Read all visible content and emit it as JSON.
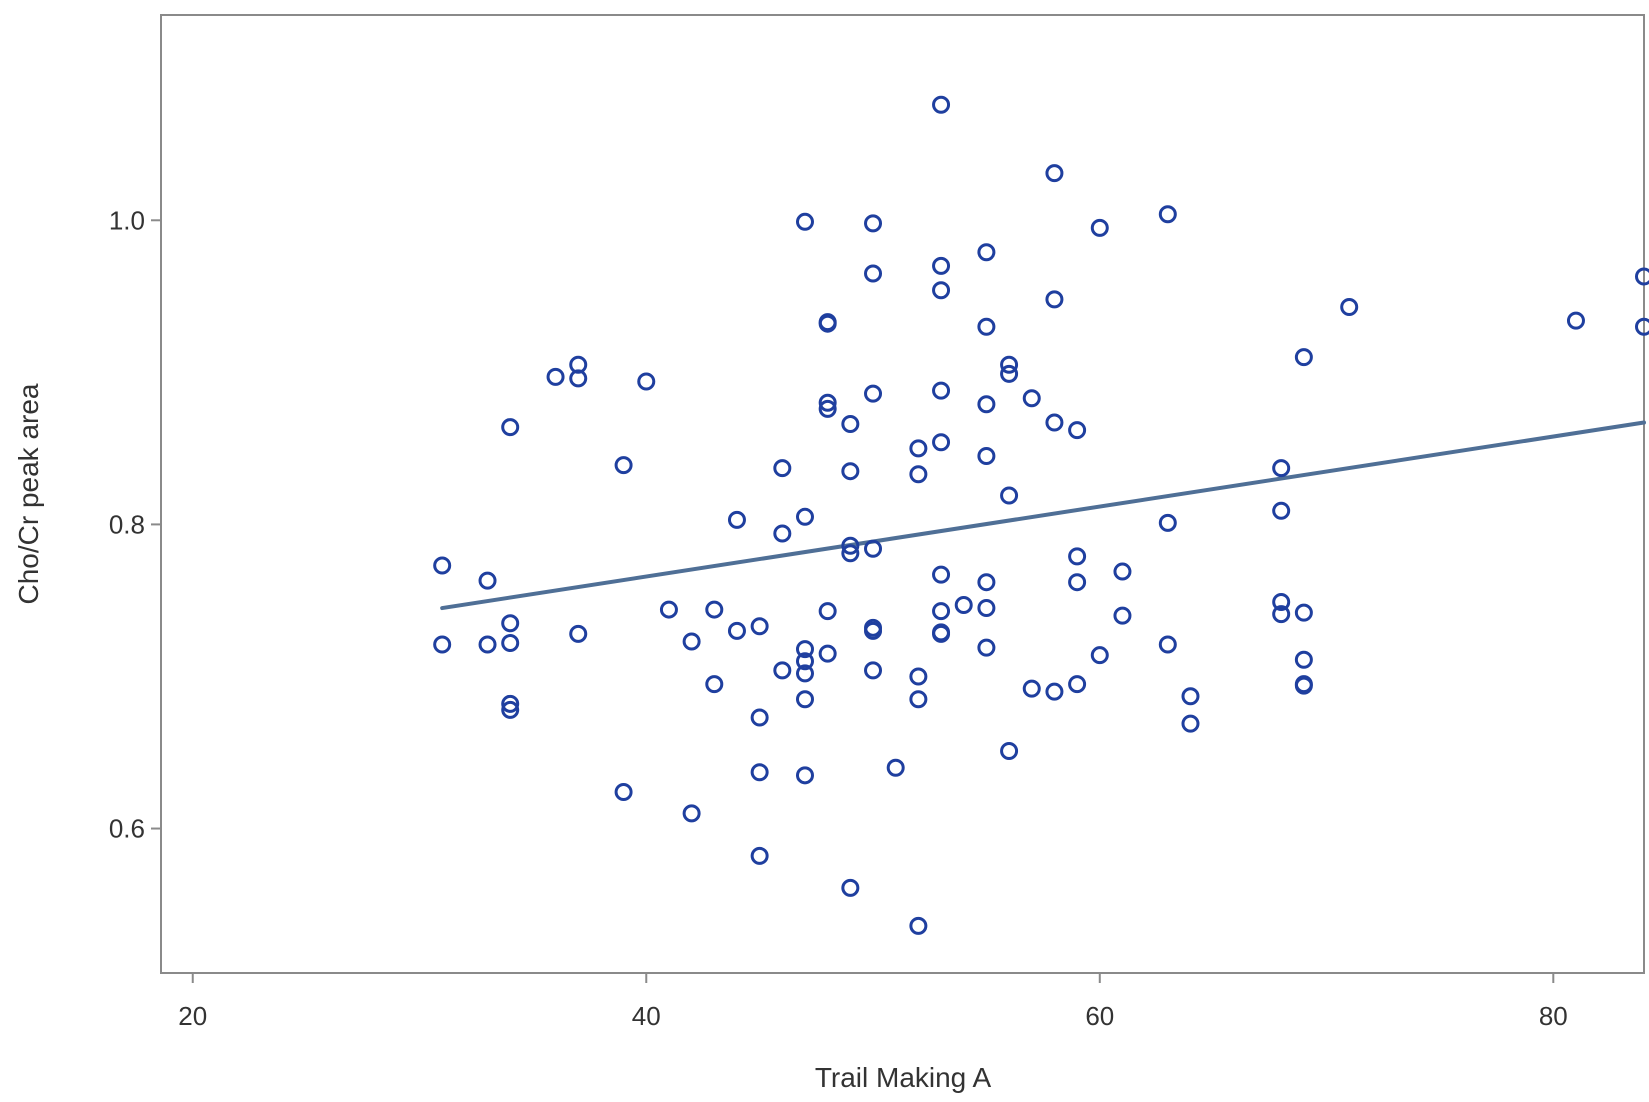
{
  "chart_data": {
    "type": "scatter",
    "title": "",
    "xlabel": "Trail Making A",
    "ylabel": "Cho/Cr peak area",
    "xlim": [
      18.6,
      84
    ],
    "ylim": [
      0.505,
      1.135
    ],
    "x_ticks": [
      20,
      40,
      60,
      80
    ],
    "y_ticks": [
      0.6,
      0.8,
      1.0
    ],
    "x_tick_labels": [
      "20",
      "40",
      "60",
      "80"
    ],
    "y_tick_labels": [
      "0.6",
      "0.8",
      "1.0"
    ],
    "grid": false,
    "legend": "none",
    "marker_color": "#1f3f9f",
    "line_color": "#4f6f96",
    "series": [
      {
        "type": "scatter",
        "points": [
          [
            31,
            0.773
          ],
          [
            31,
            0.721
          ],
          [
            33,
            0.763
          ],
          [
            33,
            0.721
          ],
          [
            34,
            0.864
          ],
          [
            34,
            0.735
          ],
          [
            34,
            0.722
          ],
          [
            34,
            0.682
          ],
          [
            34,
            0.678
          ],
          [
            36,
            0.897
          ],
          [
            37,
            0.905
          ],
          [
            37,
            0.896
          ],
          [
            37,
            0.728
          ],
          [
            39,
            0.839
          ],
          [
            39,
            0.624
          ],
          [
            40,
            0.894
          ],
          [
            41,
            0.744
          ],
          [
            42,
            0.723
          ],
          [
            42,
            0.61
          ],
          [
            43,
            0.744
          ],
          [
            43,
            0.695
          ],
          [
            44,
            0.803
          ],
          [
            44,
            0.73
          ],
          [
            45,
            0.733
          ],
          [
            45,
            0.673
          ],
          [
            45,
            0.637
          ],
          [
            45,
            0.582
          ],
          [
            46,
            0.837
          ],
          [
            46,
            0.794
          ],
          [
            46,
            0.704
          ],
          [
            47,
            0.999
          ],
          [
            47,
            0.805
          ],
          [
            47,
            0.718
          ],
          [
            47,
            0.71
          ],
          [
            47,
            0.702
          ],
          [
            47,
            0.685
          ],
          [
            47,
            0.635
          ],
          [
            48,
            0.933
          ],
          [
            48,
            0.932
          ],
          [
            48,
            0.88
          ],
          [
            48,
            0.876
          ],
          [
            48,
            0.743
          ],
          [
            48,
            0.715
          ],
          [
            49,
            0.866
          ],
          [
            49,
            0.835
          ],
          [
            49,
            0.786
          ],
          [
            49,
            0.781
          ],
          [
            49,
            0.561
          ],
          [
            50,
            0.998
          ],
          [
            50,
            0.965
          ],
          [
            50,
            0.886
          ],
          [
            50,
            0.784
          ],
          [
            50,
            0.732
          ],
          [
            50,
            0.73
          ],
          [
            50,
            0.704
          ],
          [
            51,
            0.64
          ],
          [
            52,
            0.85
          ],
          [
            52,
            0.833
          ],
          [
            52,
            0.7
          ],
          [
            52,
            0.685
          ],
          [
            52,
            0.536
          ],
          [
            53,
            1.076
          ],
          [
            53,
            0.97
          ],
          [
            53,
            0.954
          ],
          [
            53,
            0.888
          ],
          [
            53,
            0.854
          ],
          [
            53,
            0.767
          ],
          [
            53,
            0.743
          ],
          [
            53,
            0.729
          ],
          [
            53,
            0.728
          ],
          [
            54,
            0.747
          ],
          [
            55,
            0.979
          ],
          [
            55,
            0.93
          ],
          [
            55,
            0.879
          ],
          [
            55,
            0.845
          ],
          [
            55,
            0.762
          ],
          [
            55,
            0.745
          ],
          [
            55,
            0.719
          ],
          [
            56,
            0.905
          ],
          [
            56,
            0.899
          ],
          [
            56,
            0.819
          ],
          [
            56,
            0.651
          ],
          [
            57,
            0.883
          ],
          [
            57,
            0.692
          ],
          [
            58,
            1.031
          ],
          [
            58,
            0.948
          ],
          [
            58,
            0.867
          ],
          [
            58,
            0.69
          ],
          [
            59,
            0.862
          ],
          [
            59,
            0.779
          ],
          [
            59,
            0.762
          ],
          [
            59,
            0.695
          ],
          [
            60,
            0.995
          ],
          [
            60,
            0.714
          ],
          [
            61,
            0.769
          ],
          [
            61,
            0.74
          ],
          [
            63,
            1.004
          ],
          [
            63,
            0.801
          ],
          [
            63,
            0.721
          ],
          [
            64,
            0.687
          ],
          [
            64,
            0.669
          ],
          [
            68,
            0.837
          ],
          [
            68,
            0.809
          ],
          [
            68,
            0.749
          ],
          [
            68,
            0.741
          ],
          [
            69,
            0.91
          ],
          [
            69,
            0.742
          ],
          [
            69,
            0.711
          ],
          [
            69,
            0.695
          ],
          [
            69,
            0.694
          ],
          [
            71,
            0.943
          ],
          [
            81,
            0.934
          ],
          [
            84,
            0.963
          ],
          [
            84,
            0.93
          ]
        ]
      },
      {
        "type": "line",
        "role": "regression line",
        "points": [
          [
            31,
            0.745
          ],
          [
            84,
            0.867
          ]
        ]
      }
    ]
  }
}
